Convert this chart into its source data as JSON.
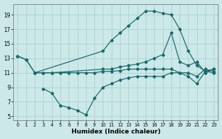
{
  "xlabel": "Humidex (Indice chaleur)",
  "x_range": [
    -0.5,
    23.5
  ],
  "y_range": [
    4.5,
    20.5
  ],
  "yticks": [
    5,
    7,
    9,
    11,
    13,
    15,
    17,
    19
  ],
  "xticks": [
    0,
    1,
    2,
    3,
    4,
    5,
    6,
    7,
    8,
    9,
    10,
    11,
    12,
    13,
    14,
    15,
    16,
    17,
    18,
    19,
    20,
    21,
    22,
    23
  ],
  "bg_color": "#cce8e8",
  "grid_color": "#aed4d4",
  "line_color": "#1a6b6b",
  "lines": [
    {
      "x": [
        0,
        1,
        2,
        10,
        11,
        12,
        13,
        14,
        15,
        16,
        17,
        18,
        19,
        20,
        21,
        22,
        23
      ],
      "y": [
        13.3,
        12.8,
        11.0,
        14.0,
        15.5,
        16.5,
        17.5,
        18.5,
        19.5,
        19.5,
        19.2,
        19.0,
        17.0,
        14.0,
        12.0,
        11.2,
        11.5
      ]
    },
    {
      "x": [
        0,
        1,
        2,
        3,
        4,
        10,
        11,
        12,
        13,
        14,
        15,
        16,
        17,
        18,
        19,
        20,
        21,
        22,
        23
      ],
      "y": [
        13.3,
        12.8,
        11.0,
        11.0,
        11.0,
        11.5,
        11.5,
        11.8,
        12.0,
        12.2,
        12.5,
        13.0,
        13.5,
        16.5,
        12.5,
        12.0,
        12.5,
        11.0,
        11.5
      ]
    },
    {
      "x": [
        2,
        3,
        4,
        5,
        6,
        7,
        8,
        9,
        10,
        11,
        12,
        13,
        14,
        15,
        16,
        17,
        18,
        19,
        20,
        21,
        22,
        23
      ],
      "y": [
        11.0,
        11.0,
        11.0,
        11.0,
        11.0,
        11.0,
        11.0,
        11.0,
        11.2,
        11.2,
        11.3,
        11.5,
        11.5,
        11.5,
        11.5,
        11.5,
        11.5,
        11.0,
        11.0,
        10.5,
        11.5,
        11.2
      ]
    },
    {
      "x": [
        3,
        4,
        5,
        6,
        7,
        8,
        9,
        10,
        11,
        12,
        13,
        14,
        15,
        16,
        17,
        18,
        19,
        20,
        21,
        22,
        23
      ],
      "y": [
        8.8,
        8.2,
        6.5,
        6.2,
        5.8,
        5.2,
        7.5,
        9.0,
        9.5,
        10.0,
        10.3,
        10.5,
        10.5,
        10.5,
        10.5,
        11.0,
        11.0,
        10.5,
        9.5,
        11.2,
        11.0
      ]
    }
  ]
}
